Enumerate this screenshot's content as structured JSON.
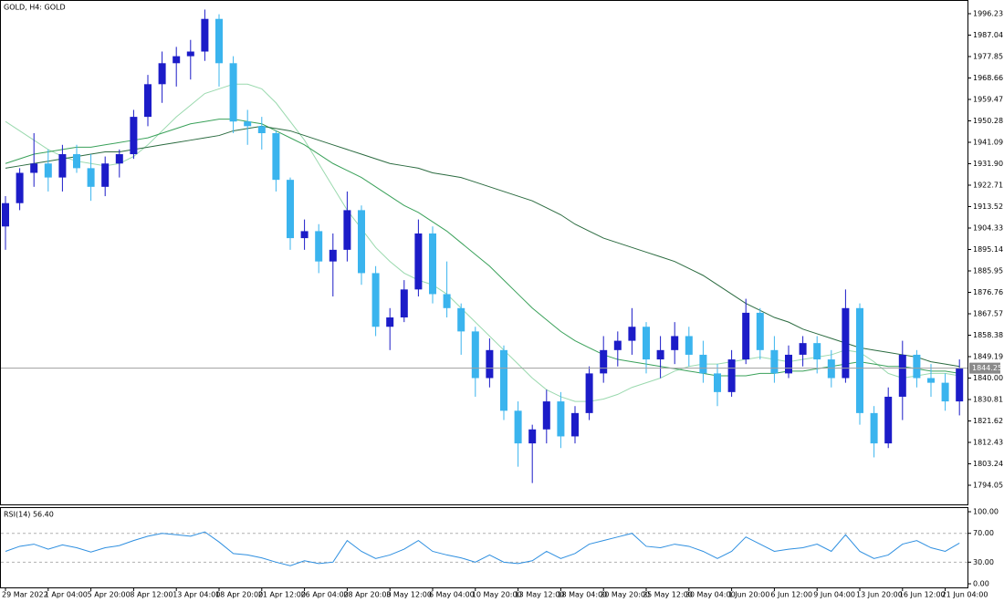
{
  "chart_data": [
    {
      "type": "candlestick",
      "title": "GOLD, H4:  GOLD",
      "categories": [
        "29 Mar 2022",
        null,
        null,
        "1 Apr 04:00",
        null,
        null,
        "5 Apr 20:00",
        null,
        null,
        "8 Apr 12:00",
        null,
        null,
        "13 Apr 04:00",
        null,
        null,
        "18 Apr 20:00",
        null,
        null,
        "21 Apr 12:00",
        null,
        null,
        "26 Apr 04:00",
        null,
        null,
        "28 Apr 20:00",
        null,
        null,
        "3 May 12:00",
        null,
        null,
        "6 May 04:00",
        null,
        null,
        "10 May 20:00",
        null,
        null,
        "13 May 12:00",
        null,
        null,
        "18 May 04:00",
        null,
        null,
        "20 May 20:00",
        null,
        null,
        "25 May 12:00",
        null,
        null,
        "30 May 04:00",
        null,
        null,
        "1 Jun 20:00",
        null,
        null,
        "6 Jun 12:00",
        null,
        null,
        "9 Jun 04:00",
        null,
        null,
        "13 Jun 20:00",
        null,
        null,
        "16 Jun 12:00",
        null,
        null,
        "21 Jun 04:00",
        null
      ],
      "open": [
        1905,
        1915,
        1928,
        1932,
        1926,
        1936,
        1930,
        1922,
        1932,
        1936,
        1952,
        1966,
        1975,
        1978,
        1980,
        1994,
        1975,
        1950,
        1948,
        1945,
        1925,
        1900,
        1903,
        1890,
        1895,
        1912,
        1885,
        1862,
        1866,
        1878,
        1902,
        1876,
        1870,
        1860,
        1840,
        1852,
        1826,
        1812,
        1818,
        1830,
        1815,
        1825,
        1842,
        1852,
        1856,
        1862,
        1848,
        1852,
        1858,
        1850,
        1842,
        1834,
        1848,
        1868,
        1852,
        1842,
        1850,
        1855,
        1848,
        1840,
        1870,
        1825,
        1812,
        1832,
        1850,
        1840,
        1838,
        1830
      ],
      "high": [
        1918,
        1930,
        1945,
        1938,
        1940,
        1940,
        1936,
        1935,
        1938,
        1955,
        1970,
        1980,
        1982,
        1985,
        1998,
        1996,
        1978,
        1955,
        1952,
        1946,
        1926,
        1908,
        1906,
        1902,
        1920,
        1914,
        1888,
        1870,
        1882,
        1908,
        1905,
        1890,
        1872,
        1862,
        1857,
        1854,
        1830,
        1820,
        1835,
        1834,
        1828,
        1845,
        1858,
        1860,
        1870,
        1864,
        1858,
        1864,
        1862,
        1856,
        1846,
        1852,
        1874,
        1870,
        1858,
        1854,
        1858,
        1858,
        1852,
        1878,
        1872,
        1828,
        1836,
        1856,
        1852,
        1846,
        1842,
        1848
      ],
      "low": [
        1895,
        1912,
        1922,
        1920,
        1920,
        1928,
        1916,
        1918,
        1926,
        1934,
        1948,
        1958,
        1965,
        1968,
        1976,
        1965,
        1945,
        1940,
        1938,
        1920,
        1895,
        1895,
        1885,
        1875,
        1890,
        1880,
        1858,
        1852,
        1864,
        1875,
        1872,
        1866,
        1850,
        1832,
        1836,
        1822,
        1802,
        1795,
        1812,
        1810,
        1812,
        1822,
        1838,
        1845,
        1850,
        1842,
        1840,
        1846,
        1845,
        1838,
        1828,
        1832,
        1846,
        1848,
        1838,
        1840,
        1845,
        1842,
        1836,
        1838,
        1820,
        1806,
        1810,
        1822,
        1836,
        1832,
        1826,
        1824
      ],
      "close": [
        1915,
        1928,
        1932,
        1926,
        1936,
        1930,
        1922,
        1932,
        1936,
        1952,
        1966,
        1975,
        1978,
        1980,
        1994,
        1975,
        1950,
        1948,
        1945,
        1925,
        1900,
        1903,
        1890,
        1895,
        1912,
        1885,
        1862,
        1866,
        1878,
        1902,
        1876,
        1870,
        1860,
        1840,
        1852,
        1826,
        1812,
        1818,
        1830,
        1815,
        1825,
        1842,
        1852,
        1856,
        1862,
        1848,
        1852,
        1858,
        1850,
        1842,
        1834,
        1848,
        1868,
        1852,
        1842,
        1850,
        1855,
        1848,
        1840,
        1870,
        1825,
        1812,
        1832,
        1850,
        1840,
        1838,
        1830,
        1844.25
      ],
      "up_color": "#1c1cc8",
      "down_color": "#3ab4ee",
      "lines": [
        {
          "color": "#9ad9ae",
          "values": [
            1950,
            1946,
            1942,
            1938,
            1935,
            1933,
            1932,
            1931,
            1932,
            1935,
            1940,
            1946,
            1952,
            1957,
            1962,
            1964,
            1966,
            1966,
            1964,
            1958,
            1950,
            1942,
            1932,
            1922,
            1912,
            1904,
            1896,
            1890,
            1885,
            1882,
            1880,
            1876,
            1870,
            1864,
            1858,
            1852,
            1846,
            1840,
            1835,
            1832,
            1830,
            1830,
            1831,
            1833,
            1836,
            1838,
            1840,
            1843,
            1845,
            1846,
            1846,
            1847,
            1848,
            1849,
            1848,
            1847,
            1848,
            1849,
            1850,
            1852,
            1851,
            1847,
            1842,
            1840,
            1841,
            1842,
            1842,
            1841
          ]
        },
        {
          "color": "#3aa15a",
          "values": [
            1932,
            1934,
            1936,
            1937,
            1938,
            1939,
            1939,
            1940,
            1941,
            1942,
            1943,
            1945,
            1947,
            1949,
            1950,
            1951,
            1951,
            1950,
            1949,
            1946,
            1943,
            1940,
            1936,
            1932,
            1929,
            1926,
            1922,
            1918,
            1914,
            1911,
            1907,
            1903,
            1898,
            1893,
            1888,
            1882,
            1876,
            1870,
            1865,
            1860,
            1856,
            1853,
            1850,
            1848,
            1847,
            1846,
            1845,
            1844,
            1843,
            1842,
            1841,
            1841,
            1841,
            1842,
            1842,
            1843,
            1843,
            1844,
            1845,
            1846,
            1847,
            1846,
            1845,
            1845,
            1844,
            1843,
            1843,
            1842
          ]
        },
        {
          "color": "#2b6b40",
          "values": [
            1930,
            1931,
            1932,
            1933,
            1934,
            1935,
            1936,
            1937,
            1937,
            1938,
            1939,
            1940,
            1941,
            1942,
            1943,
            1944,
            1946,
            1947,
            1948,
            1947,
            1946,
            1944,
            1942,
            1940,
            1938,
            1936,
            1934,
            1932,
            1931,
            1930,
            1928,
            1927,
            1926,
            1924,
            1922,
            1920,
            1918,
            1916,
            1913,
            1910,
            1906,
            1903,
            1900,
            1898,
            1896,
            1894,
            1892,
            1890,
            1887,
            1884,
            1880,
            1876,
            1872,
            1869,
            1866,
            1864,
            1861,
            1859,
            1857,
            1855,
            1853,
            1852,
            1851,
            1850,
            1849,
            1847,
            1846,
            1845
          ]
        }
      ],
      "current_price": 1844.25,
      "ylim": [
        1785.84,
        2002.1
      ],
      "yticks": [
        1996.23,
        1987.04,
        1977.85,
        1968.66,
        1959.47,
        1950.28,
        1941.09,
        {
          "value": 1931.9,
          "label": "1931.90"
        },
        1922.71,
        1913.52,
        1904.33,
        1895.14,
        1885.95,
        1876.76,
        1867.57,
        1858.38,
        1849.19,
        {
          "value": 1840,
          "label": "1840.00"
        },
        1830.81,
        1821.62,
        1812.43,
        1803.24,
        1794.05
      ]
    },
    {
      "type": "line",
      "label": "RSI(14) 56.40",
      "color": "#2e8fe0",
      "values": [
        45,
        52,
        55,
        48,
        54,
        50,
        44,
        50,
        53,
        60,
        66,
        70,
        68,
        66,
        72,
        58,
        42,
        40,
        36,
        30,
        25,
        32,
        28,
        30,
        60,
        45,
        35,
        40,
        48,
        60,
        45,
        40,
        36,
        30,
        40,
        30,
        28,
        32,
        45,
        35,
        42,
        55,
        60,
        65,
        70,
        52,
        50,
        55,
        52,
        45,
        35,
        45,
        65,
        55,
        45,
        48,
        50,
        55,
        45,
        68,
        45,
        35,
        40,
        55,
        60,
        50,
        45,
        56.4
      ],
      "levels": [
        70,
        30
      ],
      "ylim": [
        -6.3,
        105.1
      ],
      "yticks": [
        {
          "value": 100,
          "label": "100.00"
        },
        {
          "value": 70,
          "label": "70.00"
        },
        {
          "value": 30,
          "label": "30.00"
        },
        {
          "value": 0,
          "label": "0.00"
        }
      ]
    }
  ]
}
